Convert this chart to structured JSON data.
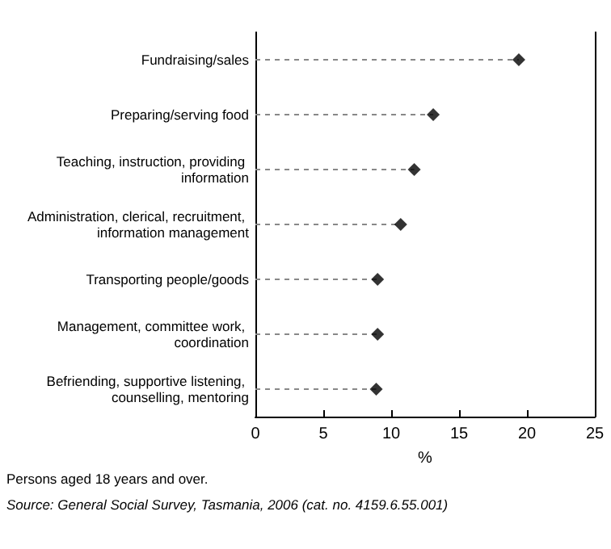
{
  "chart_data": {
    "type": "lollipop",
    "orientation": "horizontal",
    "xlabel": "%",
    "categories": [
      "Fundraising/sales",
      "Preparing/serving food",
      "Teaching, instruction, providing information",
      "Administration, clerical, recruitment, information management",
      "Transporting people/goods",
      "Management, committee work, coordination",
      "Befriending, supportive listening, counselling, mentoring"
    ],
    "values": [
      19.4,
      13.1,
      11.7,
      10.7,
      9.0,
      9.0,
      8.9
    ],
    "color": "#000000",
    "marker": "diamond",
    "line_style": "dashed",
    "xlim": [
      0,
      25
    ],
    "xticks": [
      0,
      5,
      10,
      15,
      20,
      25
    ],
    "grid": false,
    "annotations": [
      "Persons aged 18 years and over.",
      "Source: General Social Survey, Tasmania, 2006 (cat. no. 4159.6.55.001)"
    ]
  }
}
